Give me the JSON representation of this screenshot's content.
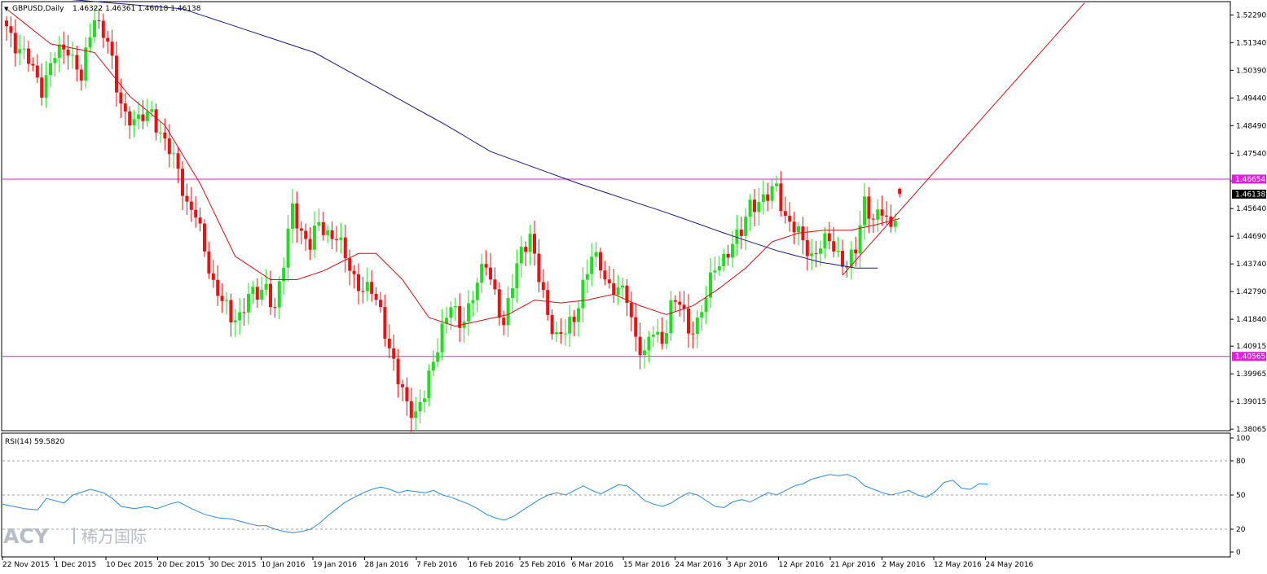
{
  "header": {
    "symbol": "GBPUSD,Daily",
    "ohlc": "1.46322 1.46361 1.46018 1.46138",
    "rsi_label": "RSI(14) 59.5820"
  },
  "watermark": {
    "brand": "ACY",
    "chinese": "稀万国际"
  },
  "colors": {
    "bull": "#22dd22",
    "bear": "#ee1111",
    "ma_fast": "#cc1111",
    "ma_slow": "#1a1a80",
    "hline": "#dd22dd",
    "trend": "#cc1111",
    "rsi": "#2a8ad6"
  },
  "chart_data": [
    {
      "type": "candlestick",
      "ylim": [
        1.3804,
        1.5272
      ],
      "y_ticks": [
        "1.52290",
        "1.51340",
        "1.50390",
        "1.49440",
        "1.48490",
        "1.47540",
        "1.46590",
        "1.45640",
        "1.44690",
        "1.43740",
        "1.42790",
        "1.41840",
        "1.40915",
        "1.39965",
        "1.39015",
        "1.38065"
      ],
      "x_labels": [
        "22 Nov 2015",
        "1 Dec 2015",
        "10 Dec 2015",
        "20 Dec 2015",
        "30 Dec 2015",
        "10 Jan 2016",
        "19 Jan 2016",
        "28 Jan 2016",
        "7 Feb 2016",
        "16 Feb 2016",
        "25 Feb 2016",
        "6 Mar 2016",
        "15 Mar 2016",
        "24 Mar 2016",
        "3 Apr 2016",
        "12 Apr 2016",
        "21 Apr 2016",
        "2 May 2016",
        "12 May 2016",
        "24 May 2016"
      ],
      "anchors": [
        [
          0,
          1.519
        ],
        [
          2,
          1.513
        ],
        [
          5,
          1.507
        ],
        [
          8,
          1.498
        ],
        [
          11,
          1.509
        ],
        [
          14,
          1.512
        ],
        [
          17,
          1.501
        ],
        [
          20,
          1.523
        ],
        [
          23,
          1.514
        ],
        [
          25,
          1.497
        ],
        [
          27,
          1.489
        ],
        [
          30,
          1.486
        ],
        [
          33,
          1.49
        ],
        [
          35,
          1.482
        ],
        [
          37,
          1.476
        ],
        [
          39,
          1.47
        ],
        [
          41,
          1.458
        ],
        [
          43,
          1.454
        ],
        [
          45,
          1.442
        ],
        [
          47,
          1.431
        ],
        [
          49,
          1.425
        ],
        [
          51,
          1.418
        ],
        [
          53,
          1.42
        ],
        [
          55,
          1.427
        ],
        [
          57,
          1.426
        ],
        [
          59,
          1.43
        ],
        [
          61,
          1.422
        ],
        [
          63,
          1.437
        ],
        [
          65,
          1.458
        ],
        [
          67,
          1.448
        ],
        [
          69,
          1.443
        ],
        [
          71,
          1.452
        ],
        [
          73,
          1.448
        ],
        [
          75,
          1.446
        ],
        [
          77,
          1.44
        ],
        [
          79,
          1.433
        ],
        [
          81,
          1.428
        ],
        [
          83,
          1.428
        ],
        [
          85,
          1.422
        ],
        [
          87,
          1.408
        ],
        [
          89,
          1.397
        ],
        [
          91,
          1.39
        ],
        [
          93,
          1.386
        ],
        [
          95,
          1.392
        ],
        [
          97,
          1.404
        ],
        [
          99,
          1.416
        ],
        [
          101,
          1.423
        ],
        [
          103,
          1.416
        ],
        [
          105,
          1.423
        ],
        [
          107,
          1.431
        ],
        [
          109,
          1.437
        ],
        [
          111,
          1.428
        ],
        [
          113,
          1.416
        ],
        [
          115,
          1.43
        ],
        [
          117,
          1.443
        ],
        [
          119,
          1.447
        ],
        [
          121,
          1.432
        ],
        [
          123,
          1.42
        ],
        [
          125,
          1.413
        ],
        [
          127,
          1.414
        ],
        [
          129,
          1.418
        ],
        [
          131,
          1.431
        ],
        [
          133,
          1.44
        ],
        [
          135,
          1.436
        ],
        [
          137,
          1.43
        ],
        [
          139,
          1.429
        ],
        [
          141,
          1.425
        ],
        [
          143,
          1.412
        ],
        [
          145,
          1.407
        ],
        [
          147,
          1.414
        ],
        [
          149,
          1.41
        ],
        [
          151,
          1.424
        ],
        [
          153,
          1.424
        ],
        [
          155,
          1.414
        ],
        [
          157,
          1.418
        ],
        [
          159,
          1.426
        ],
        [
          161,
          1.436
        ],
        [
          163,
          1.44
        ],
        [
          165,
          1.444
        ],
        [
          167,
          1.448
        ],
        [
          169,
          1.459
        ],
        [
          171,
          1.458
        ],
        [
          173,
          1.46
        ],
        [
          175,
          1.465
        ],
        [
          177,
          1.453
        ],
        [
          179,
          1.449
        ],
        [
          181,
          1.446
        ],
        [
          183,
          1.44
        ],
        [
          185,
          1.443
        ],
        [
          187,
          1.446
        ],
        [
          189,
          1.441
        ],
        [
          191,
          1.436
        ],
        [
          193,
          1.442
        ],
        [
          195,
          1.46
        ],
        [
          197,
          1.452
        ],
        [
          199,
          1.455
        ],
        [
          201,
          1.45
        ],
        [
          203,
          1.4614
        ]
      ],
      "ma_fast": [
        [
          0,
          1.525
        ],
        [
          10,
          1.513
        ],
        [
          20,
          1.51
        ],
        [
          28,
          1.495
        ],
        [
          36,
          1.485
        ],
        [
          44,
          1.465
        ],
        [
          52,
          1.44
        ],
        [
          60,
          1.432
        ],
        [
          66,
          1.432
        ],
        [
          72,
          1.435
        ],
        [
          80,
          1.441
        ],
        [
          84,
          1.441
        ],
        [
          90,
          1.432
        ],
        [
          96,
          1.419
        ],
        [
          102,
          1.416
        ],
        [
          108,
          1.418
        ],
        [
          114,
          1.42
        ],
        [
          120,
          1.425
        ],
        [
          126,
          1.424
        ],
        [
          132,
          1.425
        ],
        [
          138,
          1.427
        ],
        [
          144,
          1.423
        ],
        [
          150,
          1.42
        ],
        [
          156,
          1.423
        ],
        [
          162,
          1.429
        ],
        [
          168,
          1.436
        ],
        [
          174,
          1.445
        ],
        [
          180,
          1.448
        ],
        [
          186,
          1.449
        ],
        [
          192,
          1.449
        ],
        [
          198,
          1.451
        ],
        [
          203,
          1.453
        ]
      ],
      "ma_slow": [
        [
          0,
          1.53
        ],
        [
          40,
          1.525
        ],
        [
          70,
          1.51
        ],
        [
          100,
          1.485
        ],
        [
          110,
          1.476
        ],
        [
          130,
          1.465
        ],
        [
          150,
          1.455
        ],
        [
          165,
          1.447
        ],
        [
          175,
          1.442
        ],
        [
          185,
          1.438
        ],
        [
          193,
          1.436
        ],
        [
          198,
          1.436
        ]
      ],
      "levels": [
        {
          "value": 1.46654,
          "label": "1.46654"
        },
        {
          "value": 1.40565,
          "label": "1.40565"
        }
      ],
      "last_price": {
        "value": 1.46138,
        "label": "1.46138"
      },
      "trendline": [
        [
          190,
          1.4335
        ],
        [
          245,
          1.527
        ]
      ]
    },
    {
      "type": "line",
      "name": "RSI(14)",
      "ylim": [
        0,
        100
      ],
      "y_ticks": [
        "100",
        "80",
        "50",
        "20",
        "0"
      ],
      "levels": [
        80,
        50,
        20
      ],
      "values": [
        [
          0,
          42
        ],
        [
          5,
          38
        ],
        [
          8,
          37
        ],
        [
          10,
          47
        ],
        [
          14,
          43
        ],
        [
          16,
          50
        ],
        [
          20,
          55
        ],
        [
          23,
          52
        ],
        [
          25,
          47
        ],
        [
          27,
          40
        ],
        [
          30,
          38
        ],
        [
          33,
          40
        ],
        [
          35,
          38
        ],
        [
          38,
          42
        ],
        [
          40,
          44
        ],
        [
          43,
          38
        ],
        [
          46,
          33
        ],
        [
          49,
          30
        ],
        [
          52,
          29
        ],
        [
          55,
          26
        ],
        [
          58,
          23
        ],
        [
          60,
          23
        ],
        [
          62,
          20
        ],
        [
          64,
          18
        ],
        [
          66,
          17
        ],
        [
          68,
          18
        ],
        [
          70,
          20
        ],
        [
          72,
          25
        ],
        [
          74,
          32
        ],
        [
          76,
          38
        ],
        [
          78,
          44
        ],
        [
          80,
          48
        ],
        [
          82,
          52
        ],
        [
          84,
          55
        ],
        [
          86,
          57
        ],
        [
          88,
          55
        ],
        [
          90,
          52
        ],
        [
          92,
          54
        ],
        [
          94,
          53
        ],
        [
          96,
          52
        ],
        [
          98,
          54
        ],
        [
          100,
          50
        ],
        [
          102,
          48
        ],
        [
          104,
          45
        ],
        [
          106,
          42
        ],
        [
          108,
          38
        ],
        [
          110,
          33
        ],
        [
          112,
          30
        ],
        [
          114,
          28
        ],
        [
          116,
          31
        ],
        [
          118,
          36
        ],
        [
          120,
          41
        ],
        [
          122,
          46
        ],
        [
          124,
          50
        ],
        [
          126,
          52
        ],
        [
          128,
          50
        ],
        [
          130,
          54
        ],
        [
          132,
          58
        ],
        [
          134,
          54
        ],
        [
          136,
          51
        ],
        [
          138,
          55
        ],
        [
          140,
          59
        ],
        [
          142,
          58
        ],
        [
          144,
          52
        ],
        [
          146,
          45
        ],
        [
          148,
          42
        ],
        [
          150,
          40
        ],
        [
          152,
          43
        ],
        [
          154,
          48
        ],
        [
          156,
          52
        ],
        [
          158,
          50
        ],
        [
          160,
          45
        ],
        [
          162,
          40
        ],
        [
          164,
          39
        ],
        [
          166,
          44
        ],
        [
          168,
          46
        ],
        [
          170,
          44
        ],
        [
          172,
          48
        ],
        [
          174,
          52
        ],
        [
          176,
          50
        ],
        [
          178,
          54
        ],
        [
          180,
          58
        ],
        [
          182,
          60
        ],
        [
          184,
          64
        ],
        [
          186,
          66
        ],
        [
          188,
          68
        ],
        [
          190,
          67
        ],
        [
          192,
          68
        ],
        [
          194,
          65
        ],
        [
          196,
          58
        ],
        [
          198,
          55
        ],
        [
          200,
          52
        ],
        [
          202,
          50
        ],
        [
          204,
          52
        ],
        [
          206,
          54
        ],
        [
          208,
          50
        ],
        [
          210,
          48
        ],
        [
          212,
          53
        ],
        [
          214,
          61
        ],
        [
          216,
          63
        ],
        [
          218,
          56
        ],
        [
          220,
          55
        ],
        [
          222,
          60
        ],
        [
          224,
          59.58
        ]
      ]
    }
  ]
}
